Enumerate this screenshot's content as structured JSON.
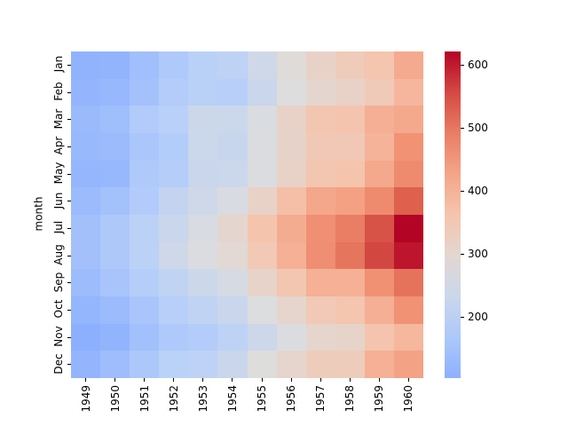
{
  "chart_data": {
    "type": "heatmap",
    "title": "",
    "xlabel": "",
    "ylabel": "month",
    "colormap": "coolwarm",
    "x": [
      "1949",
      "1950",
      "1951",
      "1952",
      "1953",
      "1954",
      "1955",
      "1956",
      "1957",
      "1958",
      "1959",
      "1960"
    ],
    "y": [
      "Jan",
      "Feb",
      "Mar",
      "Apr",
      "May",
      "Jun",
      "Jul",
      "Aug",
      "Sep",
      "Oct",
      "Nov",
      "Dec"
    ],
    "values": [
      [
        112,
        115,
        145,
        171,
        196,
        204,
        242,
        284,
        315,
        340,
        360,
        417
      ],
      [
        118,
        126,
        150,
        180,
        196,
        188,
        233,
        277,
        301,
        318,
        342,
        391
      ],
      [
        132,
        141,
        178,
        193,
        236,
        235,
        267,
        317,
        356,
        362,
        406,
        419
      ],
      [
        129,
        135,
        163,
        181,
        235,
        227,
        269,
        313,
        348,
        348,
        396,
        461
      ],
      [
        121,
        125,
        172,
        183,
        229,
        234,
        270,
        318,
        355,
        363,
        420,
        472
      ],
      [
        135,
        149,
        178,
        218,
        243,
        264,
        315,
        374,
        422,
        435,
        472,
        535
      ],
      [
        148,
        170,
        199,
        230,
        264,
        302,
        364,
        413,
        465,
        491,
        548,
        622
      ],
      [
        148,
        170,
        199,
        242,
        272,
        293,
        347,
        405,
        467,
        505,
        559,
        606
      ],
      [
        136,
        158,
        184,
        209,
        237,
        259,
        312,
        355,
        404,
        404,
        463,
        508
      ],
      [
        119,
        133,
        162,
        191,
        211,
        229,
        274,
        306,
        347,
        359,
        407,
        461
      ],
      [
        104,
        114,
        146,
        172,
        180,
        203,
        237,
        271,
        305,
        310,
        362,
        390
      ],
      [
        118,
        140,
        166,
        194,
        201,
        229,
        278,
        306,
        336,
        337,
        405,
        432
      ]
    ],
    "vmin": 104,
    "vmax": 622,
    "colorbar": {
      "ticks": [
        200,
        300,
        400,
        500,
        600
      ],
      "labels": [
        "200",
        "300",
        "400",
        "500",
        "600"
      ]
    }
  }
}
